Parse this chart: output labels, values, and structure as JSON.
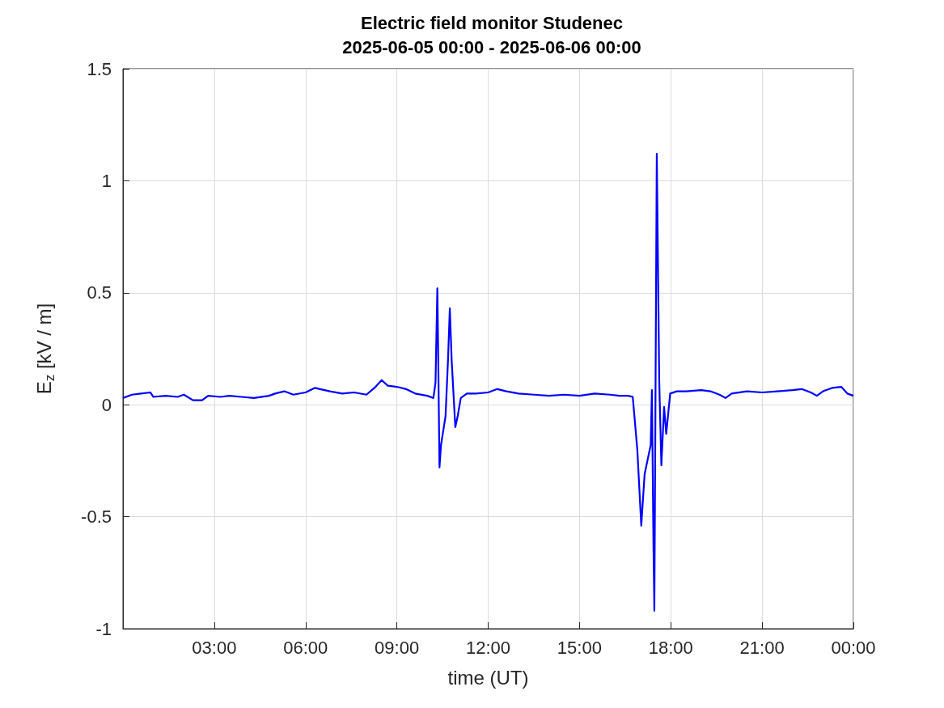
{
  "chart_data": {
    "type": "line",
    "title": "Electric field monitor Studenec\n2025-06-05 00:00 - 2025-06-06 00:00",
    "xlabel": "time (UT)",
    "ylabel": "E$_{z}$ [kV / m]",
    "xlim": [
      0,
      24
    ],
    "xticks": [
      {
        "value": 3,
        "label": "03:00"
      },
      {
        "value": 6,
        "label": "06:00"
      },
      {
        "value": 9,
        "label": "09:00"
      },
      {
        "value": 12,
        "label": "12:00"
      },
      {
        "value": 15,
        "label": "15:00"
      },
      {
        "value": 18,
        "label": "18:00"
      },
      {
        "value": 21,
        "label": "21:00"
      },
      {
        "value": 24,
        "label": "00:00"
      }
    ],
    "ylim": [
      -1,
      1.5
    ],
    "yticks": [
      -1,
      -0.5,
      0,
      0.5,
      1,
      1.5
    ],
    "grid": true,
    "marker": "none",
    "line_style": "solid",
    "series": [
      {
        "color": "#0000ff",
        "x": [
          0,
          0.3,
          0.6,
          0.9,
          1.0,
          1.4,
          1.8,
          2.0,
          2.3,
          2.6,
          2.8,
          3.2,
          3.5,
          3.9,
          4.3,
          4.8,
          5.0,
          5.3,
          5.6,
          6.0,
          6.3,
          6.8,
          7.2,
          7.6,
          8.0,
          8.3,
          8.5,
          8.7,
          9.0,
          9.3,
          9.6,
          10.0,
          10.2,
          10.27,
          10.33,
          10.36,
          10.4,
          10.45,
          10.52,
          10.6,
          10.68,
          10.74,
          10.8,
          10.86,
          10.92,
          11.0,
          11.1,
          11.3,
          11.6,
          12.0,
          12.3,
          12.6,
          13.0,
          13.5,
          14.0,
          14.5,
          15.0,
          15.5,
          16.0,
          16.3,
          16.6,
          16.75,
          16.9,
          17.03,
          17.14,
          17.34,
          17.38,
          17.43,
          17.46,
          17.54,
          17.62,
          17.69,
          17.78,
          17.85,
          17.98,
          18.2,
          18.5,
          19.0,
          19.3,
          19.6,
          19.8,
          20.0,
          20.5,
          21.0,
          21.5,
          22.0,
          22.3,
          22.6,
          22.8,
          23.0,
          23.3,
          23.6,
          23.8,
          24.0
        ],
        "values": [
          0.03,
          0.045,
          0.05,
          0.055,
          0.035,
          0.04,
          0.035,
          0.045,
          0.02,
          0.02,
          0.04,
          0.035,
          0.04,
          0.035,
          0.03,
          0.04,
          0.05,
          0.06,
          0.045,
          0.055,
          0.075,
          0.06,
          0.05,
          0.055,
          0.045,
          0.08,
          0.11,
          0.085,
          0.08,
          0.07,
          0.05,
          0.04,
          0.03,
          0.1,
          0.52,
          0.2,
          -0.28,
          -0.18,
          -0.12,
          -0.05,
          0.2,
          0.43,
          0.2,
          0.05,
          -0.1,
          -0.05,
          0.03,
          0.05,
          0.05,
          0.055,
          0.07,
          0.06,
          0.05,
          0.045,
          0.04,
          0.045,
          0.04,
          0.05,
          0.045,
          0.04,
          0.04,
          0.035,
          -0.2,
          -0.54,
          -0.31,
          -0.18,
          0.065,
          -0.62,
          -0.92,
          1.12,
          0.11,
          -0.27,
          -0.01,
          -0.13,
          0.05,
          0.06,
          0.06,
          0.065,
          0.06,
          0.045,
          0.03,
          0.05,
          0.06,
          0.055,
          0.06,
          0.065,
          0.07,
          0.055,
          0.04,
          0.06,
          0.075,
          0.08,
          0.05,
          0.04
        ]
      }
    ]
  }
}
